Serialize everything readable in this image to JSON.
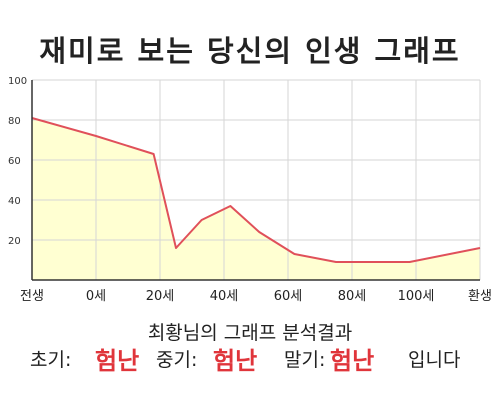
{
  "chart_data": {
    "type": "area",
    "title": "재미로 보는 당신의 인생 그래프",
    "ylim": [
      0,
      100
    ],
    "yticks": [
      20,
      40,
      60,
      80,
      100
    ],
    "xticks": [
      {
        "x": -20,
        "label": "전생"
      },
      {
        "x": 0,
        "label": "0세"
      },
      {
        "x": 20,
        "label": "20세"
      },
      {
        "x": 40,
        "label": "40세"
      },
      {
        "x": 60,
        "label": "60세"
      },
      {
        "x": 80,
        "label": "80세"
      },
      {
        "x": 100,
        "label": "100세"
      },
      {
        "x": 120,
        "label": "환생"
      }
    ],
    "xlim": [
      -20,
      120
    ],
    "points": [
      {
        "x": -20,
        "y": 81
      },
      {
        "x": 0,
        "y": 72
      },
      {
        "x": 18,
        "y": 63
      },
      {
        "x": 25,
        "y": 16
      },
      {
        "x": 33,
        "y": 30
      },
      {
        "x": 42,
        "y": 37
      },
      {
        "x": 51,
        "y": 24
      },
      {
        "x": 62,
        "y": 13
      },
      {
        "x": 75,
        "y": 9
      },
      {
        "x": 98,
        "y": 9
      },
      {
        "x": 120,
        "y": 16
      }
    ],
    "grid": true,
    "colors": {
      "fill": "#ffffd2",
      "line": "#e0505a",
      "grid": "#d6d6d6"
    }
  },
  "summary": {
    "heading": "최황님의 그래프 분석결과",
    "early_label": "초기:",
    "early_value": "험난",
    "middle_label": "중기:",
    "middle_value": "험난",
    "late_label": "말기:",
    "late_value": "험난",
    "ending": "입니다"
  }
}
